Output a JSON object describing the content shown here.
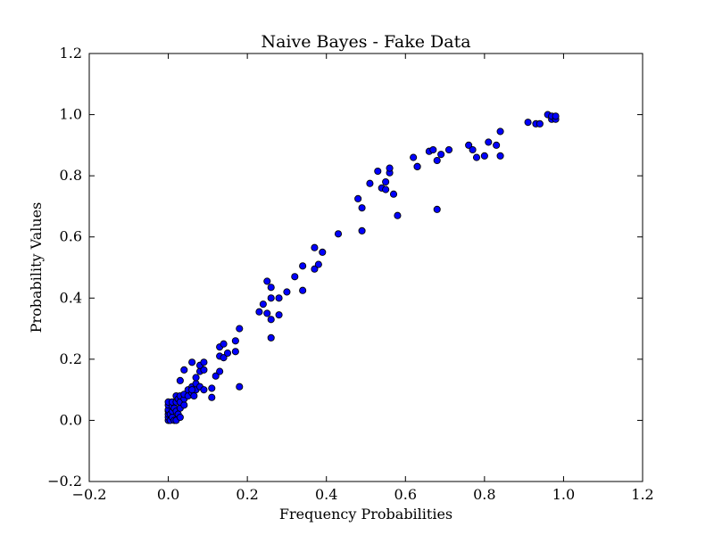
{
  "chart_data": {
    "type": "scatter",
    "title": "Naive Bayes - Fake Data",
    "xlabel": "Frequency Probabilities",
    "ylabel": "Probability Values",
    "xlim": [
      -0.2,
      1.2
    ],
    "ylim": [
      -0.2,
      1.2
    ],
    "xticks": [
      "−0.2",
      "0.0",
      "0.2",
      "0.4",
      "0.6",
      "0.8",
      "1.0",
      "1.2"
    ],
    "yticks": [
      "−0.2",
      "0.0",
      "0.2",
      "0.4",
      "0.6",
      "0.8",
      "1.0",
      "1.2"
    ],
    "grid": false,
    "marker_color": "#0000ff",
    "marker_edge_color": "#000000",
    "series": [
      {
        "x": [
          0.0,
          0.0,
          0.0,
          0.0,
          0.0,
          0.0,
          0.0,
          0.005,
          0.005,
          0.01,
          0.01,
          0.01,
          0.01,
          0.015,
          0.015,
          0.02,
          0.02,
          0.02,
          0.02,
          0.025,
          0.025,
          0.03,
          0.03,
          0.03,
          0.03,
          0.04,
          0.04,
          0.04,
          0.05,
          0.05,
          0.06,
          0.06,
          0.06,
          0.065,
          0.07,
          0.07,
          0.07,
          0.08,
          0.08,
          0.08,
          0.09,
          0.09,
          0.09,
          0.04,
          0.06,
          0.03,
          0.11,
          0.11,
          0.12,
          0.13,
          0.13,
          0.13,
          0.14,
          0.14,
          0.15,
          0.17,
          0.17,
          0.18,
          0.18,
          0.23,
          0.24,
          0.25,
          0.25,
          0.26,
          0.26,
          0.26,
          0.26,
          0.28,
          0.28,
          0.3,
          0.32,
          0.34,
          0.34,
          0.37,
          0.37,
          0.38,
          0.39,
          0.43,
          0.48,
          0.49,
          0.49,
          0.51,
          0.53,
          0.54,
          0.55,
          0.55,
          0.56,
          0.56,
          0.57,
          0.58,
          0.62,
          0.63,
          0.63,
          0.66,
          0.67,
          0.68,
          0.68,
          0.69,
          0.71,
          0.76,
          0.77,
          0.78,
          0.8,
          0.81,
          0.83,
          0.84,
          0.84,
          0.91,
          0.93,
          0.94,
          0.96,
          0.97,
          0.97,
          0.98,
          0.98
        ],
        "y": [
          0.0,
          0.01,
          0.02,
          0.03,
          0.035,
          0.05,
          0.06,
          0.0,
          0.02,
          0.01,
          0.03,
          0.045,
          0.06,
          0.0,
          0.04,
          0.0,
          0.03,
          0.06,
          0.08,
          0.02,
          0.07,
          0.01,
          0.04,
          0.06,
          0.08,
          0.05,
          0.07,
          0.085,
          0.08,
          0.1,
          0.09,
          0.11,
          0.19,
          0.08,
          0.1,
          0.12,
          0.14,
          0.11,
          0.16,
          0.18,
          0.1,
          0.165,
          0.19,
          0.165,
          0.1,
          0.13,
          0.075,
          0.105,
          0.145,
          0.16,
          0.21,
          0.24,
          0.205,
          0.25,
          0.22,
          0.225,
          0.26,
          0.11,
          0.3,
          0.355,
          0.38,
          0.35,
          0.455,
          0.27,
          0.33,
          0.4,
          0.435,
          0.345,
          0.4,
          0.42,
          0.47,
          0.425,
          0.505,
          0.495,
          0.565,
          0.51,
          0.55,
          0.61,
          0.725,
          0.62,
          0.695,
          0.775,
          0.815,
          0.76,
          0.755,
          0.78,
          0.81,
          0.825,
          0.74,
          0.67,
          0.86,
          0.83,
          0.83,
          0.88,
          0.885,
          0.69,
          0.85,
          0.87,
          0.885,
          0.9,
          0.885,
          0.86,
          0.865,
          0.91,
          0.9,
          0.865,
          0.945,
          0.975,
          0.97,
          0.97,
          1.0,
          0.985,
          0.995,
          0.985,
          0.995
        ]
      }
    ]
  }
}
